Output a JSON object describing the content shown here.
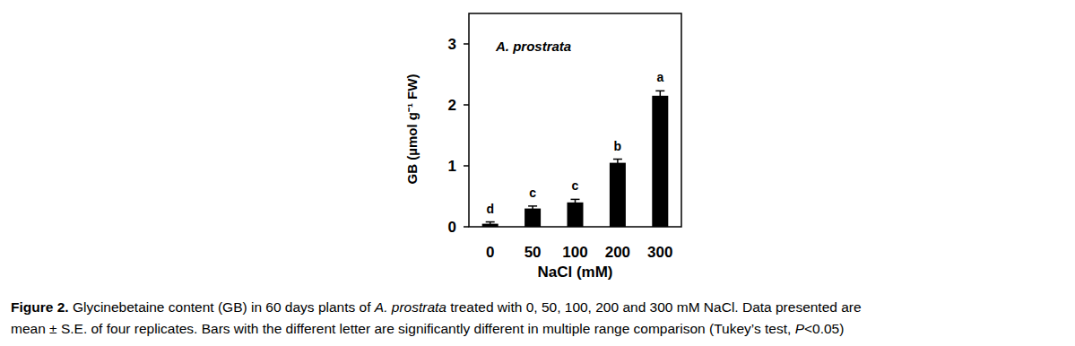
{
  "chart_data": {
    "type": "bar",
    "title": "A. prostrata",
    "x_label": "NaCl (mM)",
    "y_label": "GB (µmol g⁻¹ FW)",
    "categories": [
      "0",
      "50",
      "100",
      "200",
      "300"
    ],
    "values": [
      0.05,
      0.3,
      0.4,
      1.05,
      2.15
    ],
    "errors": [
      0.03,
      0.04,
      0.05,
      0.06,
      0.08
    ],
    "letters": [
      "d",
      "c",
      "c",
      "b",
      "a"
    ],
    "color": "#000000",
    "ylim": [
      0,
      3.5
    ],
    "yticks": [
      0,
      1,
      2,
      3
    ],
    "grid": false
  },
  "caption": {
    "lines": [
      [
        {
          "text": "Figure 2.",
          "bold": true
        },
        {
          "text": " Glycinebetaine content (GB) in 60 days plants of "
        },
        {
          "text": "A. prostrata",
          "italic": true
        },
        {
          "text": " treated with 0, 50, 100, 200 and 300 mM NaCl. Data presented are"
        }
      ],
      [
        {
          "text": "mean ± S.E. of four replicates. Bars with the different letter are significantly different in multiple range comparison (Tukey’s test, "
        },
        {
          "text": "P",
          "italic": true
        },
        {
          "text": "<0.05)"
        }
      ]
    ]
  }
}
